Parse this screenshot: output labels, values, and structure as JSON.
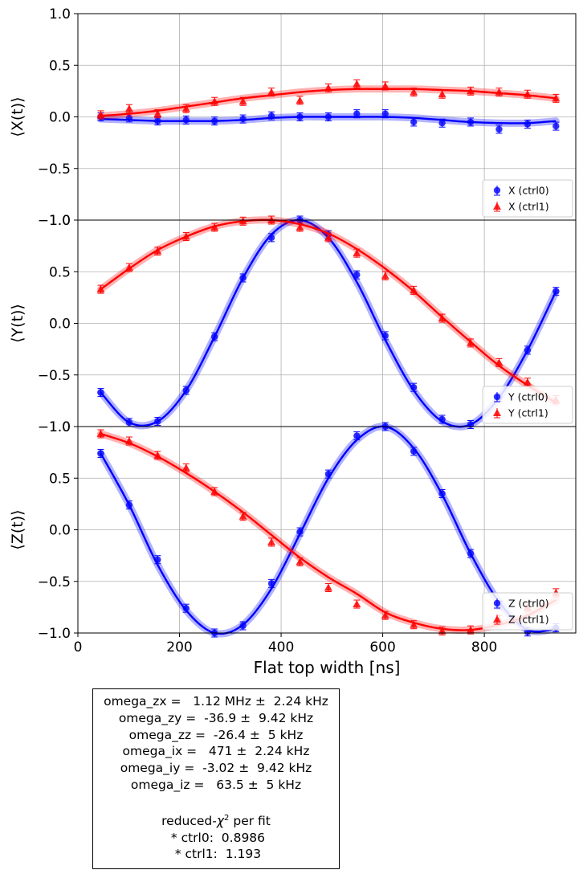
{
  "chart_data": {
    "type": "scatter",
    "xlabel": "Flat top width [ns]",
    "xlim": [
      0,
      980
    ],
    "xticks": [
      0,
      200,
      400,
      600,
      800
    ],
    "ylim": [
      -1.0,
      1.0
    ],
    "yticks": [
      -1.0,
      -0.5,
      0.0,
      0.5,
      1.0
    ],
    "grid": true,
    "x": [
      45,
      101,
      157,
      213,
      269,
      325,
      381,
      437,
      493,
      549,
      605,
      661,
      717,
      773,
      829,
      885,
      941
    ],
    "panels": [
      {
        "ylabel": "⟨X(t)⟩",
        "legend_position": "lower-right",
        "series": [
          {
            "name": "X (ctrl0)",
            "color": "#0000ff",
            "marker": "circle",
            "values": [
              0.0,
              -0.01,
              -0.04,
              -0.03,
              -0.04,
              -0.02,
              0.01,
              0.0,
              0.0,
              0.03,
              0.03,
              -0.05,
              -0.06,
              -0.05,
              -0.12,
              -0.07,
              -0.09
            ],
            "fit": [
              -0.02,
              -0.03,
              -0.04,
              -0.04,
              -0.04,
              -0.03,
              -0.01,
              0.0,
              0.0,
              0.0,
              0.0,
              -0.01,
              -0.03,
              -0.05,
              -0.06,
              -0.06,
              -0.04
            ]
          },
          {
            "name": "X (ctrl1)",
            "color": "#ff0000",
            "marker": "triangle",
            "values": [
              0.02,
              0.08,
              0.03,
              0.08,
              0.15,
              0.15,
              0.24,
              0.16,
              0.28,
              0.32,
              0.3,
              0.24,
              0.22,
              0.25,
              0.24,
              0.22,
              0.18
            ],
            "fit": [
              0.01,
              0.03,
              0.06,
              0.1,
              0.14,
              0.18,
              0.21,
              0.24,
              0.26,
              0.27,
              0.27,
              0.27,
              0.26,
              0.25,
              0.23,
              0.21,
              0.18
            ]
          }
        ]
      },
      {
        "ylabel": "⟨Y(t)⟩",
        "legend_position": "lower-right",
        "series": [
          {
            "name": "Y (ctrl0)",
            "color": "#0000ff",
            "marker": "circle",
            "values": [
              -0.67,
              -0.96,
              -0.95,
              -0.65,
              -0.13,
              0.44,
              0.83,
              1.0,
              0.86,
              0.47,
              -0.12,
              -0.62,
              -0.93,
              -0.98,
              -0.72,
              -0.26,
              0.31
            ],
            "fit": [
              -0.67,
              -0.96,
              -0.95,
              -0.65,
              -0.13,
              0.44,
              0.86,
              1.0,
              0.83,
              0.4,
              -0.16,
              -0.65,
              -0.95,
              -0.98,
              -0.72,
              -0.26,
              0.31
            ]
          },
          {
            "name": "Y (ctrl1)",
            "color": "#ff0000",
            "marker": "triangle",
            "values": [
              0.33,
              0.54,
              0.7,
              0.84,
              0.93,
              0.99,
              1.0,
              0.93,
              0.83,
              0.68,
              0.46,
              0.32,
              0.05,
              -0.19,
              -0.38,
              -0.57,
              -0.74
            ],
            "fit": [
              0.33,
              0.53,
              0.71,
              0.84,
              0.94,
              0.99,
              1.0,
              0.96,
              0.87,
              0.72,
              0.53,
              0.31,
              0.06,
              -0.18,
              -0.41,
              -0.6,
              -0.77
            ]
          }
        ]
      },
      {
        "ylabel": "⟨Z(t)⟩",
        "legend_position": "lower-right",
        "series": [
          {
            "name": "Z (ctrl0)",
            "color": "#0000ff",
            "marker": "circle",
            "values": [
              0.74,
              0.24,
              -0.29,
              -0.76,
              -1.0,
              -0.93,
              -0.52,
              -0.02,
              0.54,
              0.91,
              1.0,
              0.76,
              0.35,
              -0.23,
              -0.73,
              -0.99,
              -0.95
            ],
            "fit": [
              0.74,
              0.24,
              -0.34,
              -0.78,
              -1.0,
              -0.92,
              -0.57,
              -0.04,
              0.5,
              0.87,
              1.0,
              0.79,
              0.34,
              -0.23,
              -0.7,
              -0.97,
              -0.96
            ]
          },
          {
            "name": "Z (ctrl1)",
            "color": "#ff0000",
            "marker": "triangle",
            "values": [
              0.93,
              0.86,
              0.72,
              0.6,
              0.37,
              0.13,
              -0.12,
              -0.31,
              -0.56,
              -0.72,
              -0.83,
              -0.92,
              -0.98,
              -0.97,
              -0.87,
              -0.75,
              -0.61
            ],
            "fit": [
              0.93,
              0.84,
              0.71,
              0.55,
              0.37,
              0.17,
              -0.05,
              -0.27,
              -0.46,
              -0.62,
              -0.8,
              -0.9,
              -0.96,
              -0.97,
              -0.92,
              -0.83,
              -0.68
            ]
          }
        ]
      }
    ]
  },
  "fit_box": {
    "lines": [
      "omega_zx =   1.12 MHz ±  2.24 kHz",
      "omega_zy =  -36.9 ±  9.42 kHz",
      "omega_zz =  -26.4 ±  5 kHz",
      "omega_ix =   471 ±  2.24 kHz",
      "omega_iy =  -3.02 ±  9.42 kHz",
      "omega_iz =   63.5 ±  5 kHz"
    ],
    "chi_title_prefix": "reduced-",
    "chi_symbol": "χ",
    "chi_sup": "2",
    "chi_title_suffix": " per fit",
    "ctrl_lines": [
      " * ctrl0:  0.8986",
      " * ctrl1:  1.193"
    ]
  }
}
